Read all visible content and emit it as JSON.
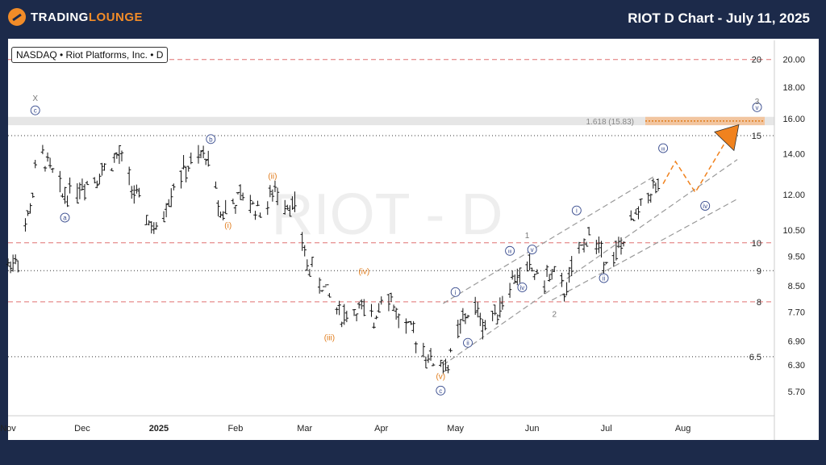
{
  "brand": {
    "name_part1": "TRADING",
    "name_part2": "LOUNGE"
  },
  "header": {
    "title": "RIOT D Chart - July 11, 2025"
  },
  "legend": {
    "text": "NASDAQ • Riot Platforms, Inc. • D"
  },
  "watermark": "RIOT - D",
  "chart_data": {
    "type": "candlestick",
    "title": "RIOT D Chart - July 11, 2025",
    "symbol": "RIOT",
    "exchange": "NASDAQ",
    "timeframe": "D",
    "y_scale": "log",
    "ylim": [
      5.2,
      21.5
    ],
    "y_ticks": [
      5.7,
      6.3,
      6.9,
      7.7,
      8.5,
      9.5,
      10.5,
      12.0,
      14.0,
      16.0,
      18.0,
      20.0
    ],
    "y_tick_labels": [
      "5.70",
      "6.30",
      "6.90",
      "7.70",
      "8.50",
      "9.50",
      "10.50",
      "12.00",
      "14.00",
      "16.00",
      "18.00",
      "20.00"
    ],
    "x_labels": [
      {
        "label": "Nov",
        "day": 0
      },
      {
        "label": "Dec",
        "day": 30
      },
      {
        "label": "2025",
        "day": 61
      },
      {
        "label": "Feb",
        "day": 92
      },
      {
        "label": "Mar",
        "day": 120
      },
      {
        "label": "Apr",
        "day": 151
      },
      {
        "label": "May",
        "day": 181
      },
      {
        "label": "Jun",
        "day": 212
      },
      {
        "label": "Jul",
        "day": 242
      },
      {
        "label": "Aug",
        "day": 273
      }
    ],
    "x_range": [
      0,
      310
    ],
    "levels": [
      {
        "price": 20,
        "label": "20",
        "style": "red-dashed"
      },
      {
        "price": 15,
        "label": "15",
        "style": "black-dotted"
      },
      {
        "price": 10,
        "label": "10",
        "style": "red-dashed"
      },
      {
        "price": 9,
        "label": "9",
        "style": "black-dotted"
      },
      {
        "price": 8,
        "label": "8",
        "style": "red-dashed"
      },
      {
        "price": 6.5,
        "label": "6.5",
        "style": "black-dotted"
      }
    ],
    "fib_zone": {
      "label": "1.618 (15.83)",
      "low": 15.6,
      "high": 16.1
    },
    "anchors": [
      {
        "day": 0,
        "price": 9.2
      },
      {
        "day": 5,
        "price": 9.6
      },
      {
        "day": 10,
        "price": 12.0
      },
      {
        "day": 12,
        "price": 14.2
      },
      {
        "day": 16,
        "price": 13.5
      },
      {
        "day": 22,
        "price": 12.0
      },
      {
        "day": 35,
        "price": 12.8
      },
      {
        "day": 45,
        "price": 13.9
      },
      {
        "day": 52,
        "price": 11.8
      },
      {
        "day": 60,
        "price": 10.3
      },
      {
        "day": 68,
        "price": 12.8
      },
      {
        "day": 76,
        "price": 13.6
      },
      {
        "day": 80,
        "price": 14.0
      },
      {
        "day": 86,
        "price": 11.2
      },
      {
        "day": 95,
        "price": 11.9
      },
      {
        "day": 103,
        "price": 11.2
      },
      {
        "day": 108,
        "price": 12.2
      },
      {
        "day": 116,
        "price": 11.4
      },
      {
        "day": 121,
        "price": 9.2
      },
      {
        "day": 128,
        "price": 8.4
      },
      {
        "day": 135,
        "price": 7.6
      },
      {
        "day": 142,
        "price": 7.8
      },
      {
        "day": 148,
        "price": 7.4
      },
      {
        "day": 152,
        "price": 8.6
      },
      {
        "day": 158,
        "price": 7.5
      },
      {
        "day": 165,
        "price": 7.0
      },
      {
        "day": 171,
        "price": 6.4
      },
      {
        "day": 178,
        "price": 6.3
      },
      {
        "day": 183,
        "price": 7.3
      },
      {
        "day": 188,
        "price": 7.9
      },
      {
        "day": 193,
        "price": 7.3
      },
      {
        "day": 199,
        "price": 7.9
      },
      {
        "day": 204,
        "price": 8.7
      },
      {
        "day": 211,
        "price": 9.1
      },
      {
        "day": 216,
        "price": 8.6
      },
      {
        "day": 220,
        "price": 8.9
      },
      {
        "day": 225,
        "price": 8.3
      },
      {
        "day": 230,
        "price": 9.4
      },
      {
        "day": 235,
        "price": 10.4
      },
      {
        "day": 240,
        "price": 9.6
      },
      {
        "day": 245,
        "price": 9.4
      },
      {
        "day": 250,
        "price": 10.3
      },
      {
        "day": 254,
        "price": 11.0
      },
      {
        "day": 259,
        "price": 12.1
      },
      {
        "day": 263,
        "price": 12.4
      }
    ],
    "channel_lines": [
      {
        "from": {
          "day": 176,
          "price": 7.95
        },
        "to": {
          "day": 262,
          "price": 12.9
        }
      },
      {
        "from": {
          "day": 176,
          "price": 6.3
        },
        "to": {
          "day": 295,
          "price": 13.7
        }
      },
      {
        "from": {
          "day": 220,
          "price": 8.05
        },
        "to": {
          "day": 295,
          "price": 11.8
        }
      }
    ],
    "projection_path": [
      {
        "day": 265,
        "price": 12.5
      },
      {
        "day": 270,
        "price": 13.6
      },
      {
        "day": 278,
        "price": 12.1
      },
      {
        "day": 293,
        "price": 15.3
      }
    ],
    "wave_labels": [
      {
        "text": "X",
        "day": 11,
        "price": 17.3,
        "color": "#777777",
        "circled": false
      },
      {
        "text": "c",
        "day": 11,
        "price": 16.5,
        "color": "#3a4d8f",
        "circled": true
      },
      {
        "text": "a",
        "day": 23,
        "price": 11.0,
        "color": "#3a4d8f",
        "circled": true
      },
      {
        "text": "b",
        "day": 82,
        "price": 14.8,
        "color": "#3a4d8f",
        "circled": true
      },
      {
        "text": "(ii)",
        "day": 107,
        "price": 12.9,
        "color": "#e07b1a",
        "circled": false
      },
      {
        "text": "(i)",
        "day": 89,
        "price": 10.7,
        "color": "#e07b1a",
        "circled": false
      },
      {
        "text": "(iv)",
        "day": 144,
        "price": 9.0,
        "color": "#e07b1a",
        "circled": false
      },
      {
        "text": "(iii)",
        "day": 130,
        "price": 7.0,
        "color": "#e07b1a",
        "circled": false
      },
      {
        "text": "(v)",
        "day": 175,
        "price": 6.05,
        "color": "#e07b1a",
        "circled": false
      },
      {
        "text": "c",
        "day": 175,
        "price": 5.72,
        "color": "#3a4d8f",
        "circled": true
      },
      {
        "text": "i",
        "day": 181,
        "price": 8.3,
        "color": "#3a4d8f",
        "circled": true
      },
      {
        "text": "ii",
        "day": 186,
        "price": 6.85,
        "color": "#3a4d8f",
        "circled": true
      },
      {
        "text": "iii",
        "day": 203,
        "price": 9.7,
        "color": "#3a4d8f",
        "circled": true
      },
      {
        "text": "iv",
        "day": 208,
        "price": 8.45,
        "color": "#3a4d8f",
        "circled": true
      },
      {
        "text": "v",
        "day": 212,
        "price": 9.75,
        "color": "#3a4d8f",
        "circled": true
      },
      {
        "text": "1",
        "day": 210,
        "price": 10.3,
        "color": "#777777",
        "circled": false
      },
      {
        "text": "2",
        "day": 221,
        "price": 7.65,
        "color": "#777777",
        "circled": false
      },
      {
        "text": "i",
        "day": 230,
        "price": 11.3,
        "color": "#3a4d8f",
        "circled": true
      },
      {
        "text": "ii",
        "day": 241,
        "price": 8.75,
        "color": "#3a4d8f",
        "circled": true
      },
      {
        "text": "iii",
        "day": 265,
        "price": 14.3,
        "color": "#3a4d8f",
        "circled": true
      },
      {
        "text": "iv",
        "day": 282,
        "price": 11.5,
        "color": "#3a4d8f",
        "circled": true
      },
      {
        "text": "v",
        "day": 303,
        "price": 16.7,
        "color": "#3a4d8f",
        "circled": true
      },
      {
        "text": "3",
        "day": 303,
        "price": 17.1,
        "color": "#777777",
        "circled": false
      }
    ]
  }
}
